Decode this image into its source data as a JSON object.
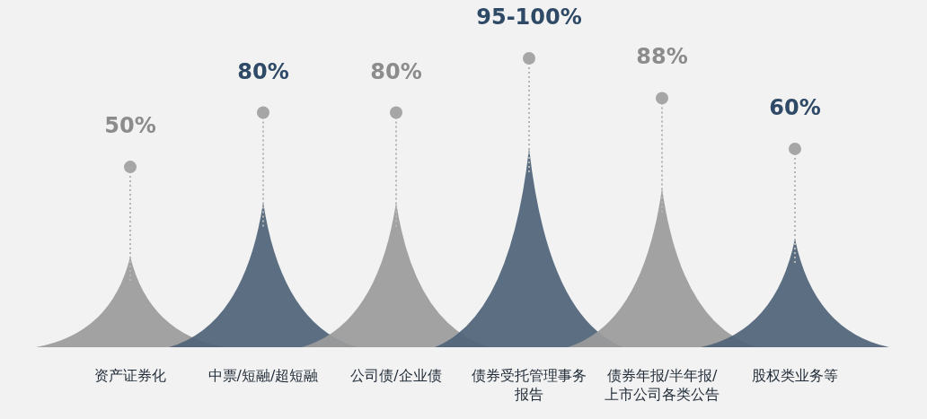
{
  "chart_data": {
    "type": "other",
    "categories": [
      "资产证券化",
      "中票/短融/超短融",
      "公司债/企业债",
      "债券受托管理事务报告",
      "债券年报/半年报/上市公司各类公告",
      "股权类业务等"
    ],
    "values": [
      50,
      80,
      80,
      null,
      88,
      60
    ],
    "colors": [
      "#9b9b9b",
      "#4f6478",
      "#9b9b9b",
      "#4f6478",
      "#9b9b9b",
      "#4f6478"
    ],
    "value_labels": [
      "50%",
      "80%",
      "80%",
      "95-100%",
      "88%",
      "60%"
    ]
  }
}
